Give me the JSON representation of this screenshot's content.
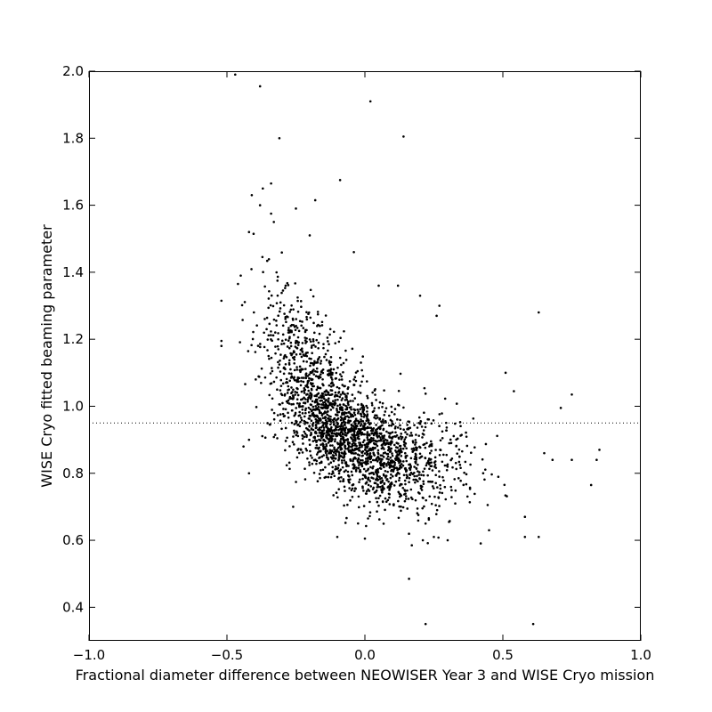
{
  "chart_data": {
    "type": "scatter",
    "xlabel": "Fractional diameter difference between NEOWISER Year 3 and WISE Cryo mission",
    "ylabel": "WISE Cryo fitted beaming parameter",
    "xlim": [
      -1.0,
      1.0
    ],
    "ylim": [
      0.3,
      2.0
    ],
    "xticks": [
      -1.0,
      -0.5,
      0.0,
      0.5,
      1.0
    ],
    "xtick_labels": [
      "−1.0",
      "−0.5",
      "0.0",
      "0.5",
      "1.0"
    ],
    "yticks": [
      0.4,
      0.6,
      0.8,
      1.0,
      1.2,
      1.4,
      1.6,
      1.8,
      2.0
    ],
    "ytick_labels": [
      "0.4",
      "0.6",
      "0.8",
      "1.0",
      "1.2",
      "1.4",
      "1.6",
      "1.8",
      "2.0"
    ],
    "reference_line": {
      "y": 0.95,
      "style": "dotted"
    },
    "marker_color": "#000000",
    "grid": false,
    "outliers": [
      [
        -0.47,
        1.99
      ],
      [
        -0.38,
        1.955
      ],
      [
        0.02,
        1.91
      ],
      [
        -0.31,
        1.8
      ],
      [
        0.14,
        1.805
      ],
      [
        -0.09,
        1.675
      ],
      [
        -0.37,
        1.65
      ],
      [
        -0.34,
        1.665
      ],
      [
        -0.41,
        1.63
      ],
      [
        -0.18,
        1.615
      ],
      [
        -0.25,
        1.59
      ],
      [
        -0.38,
        1.6
      ],
      [
        -0.34,
        1.575
      ],
      [
        -0.42,
        1.52
      ],
      [
        -0.2,
        1.51
      ],
      [
        -0.33,
        1.55
      ],
      [
        -0.46,
        1.365
      ],
      [
        -0.52,
        1.315
      ],
      [
        -0.45,
        1.39
      ],
      [
        -0.04,
        1.46
      ],
      [
        0.12,
        1.36
      ],
      [
        0.2,
        1.33
      ],
      [
        0.27,
        1.3
      ],
      [
        0.26,
        1.27
      ],
      [
        0.63,
        1.28
      ],
      [
        0.05,
        1.36
      ],
      [
        -0.52,
        1.18
      ],
      [
        -0.52,
        1.195
      ],
      [
        0.16,
        0.485
      ],
      [
        0.22,
        0.35
      ],
      [
        0.61,
        0.35
      ],
      [
        0.82,
        0.765
      ],
      [
        0.85,
        0.87
      ],
      [
        0.84,
        0.84
      ],
      [
        0.75,
        1.035
      ],
      [
        0.71,
        0.995
      ],
      [
        0.75,
        0.84
      ],
      [
        0.68,
        0.84
      ],
      [
        0.65,
        0.86
      ],
      [
        0.63,
        0.61
      ],
      [
        0.58,
        0.61
      ],
      [
        0.58,
        0.67
      ],
      [
        0.45,
        0.63
      ],
      [
        0.17,
        0.585
      ],
      [
        0.21,
        0.6
      ],
      [
        0.25,
        0.61
      ],
      [
        0.3,
        0.6
      ],
      [
        0.51,
        1.1
      ],
      [
        0.54,
        1.045
      ],
      [
        -0.42,
        0.8
      ],
      [
        -0.44,
        0.88
      ],
      [
        -0.42,
        0.9
      ],
      [
        -0.26,
        0.7
      ],
      [
        -0.1,
        0.61
      ],
      [
        0.0,
        0.605
      ]
    ],
    "cloud": {
      "description_count": 2300,
      "clusters": [
        {
          "mx": -0.05,
          "my": 0.9,
          "sx": 0.12,
          "sy": 0.085,
          "rho": -0.45,
          "weight": 0.58
        },
        {
          "mx": -0.18,
          "my": 1.08,
          "sx": 0.07,
          "sy": 0.1,
          "rho": -0.35,
          "weight": 0.17
        },
        {
          "mx": 0.18,
          "my": 0.83,
          "sx": 0.12,
          "sy": 0.085,
          "rho": 0.0,
          "weight": 0.18
        },
        {
          "mx": -0.3,
          "my": 1.22,
          "sx": 0.06,
          "sy": 0.12,
          "rho": -0.2,
          "weight": 0.07
        }
      ]
    }
  }
}
